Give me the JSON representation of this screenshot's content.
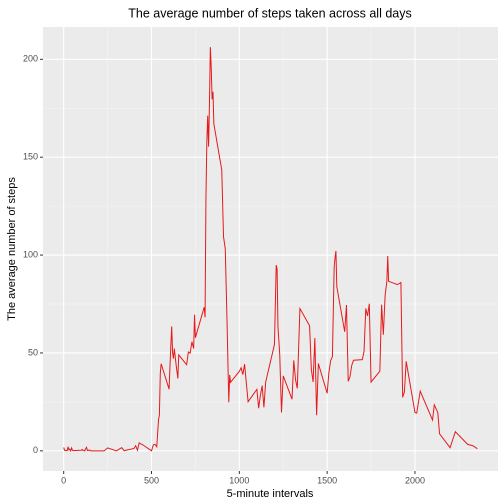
{
  "chart_data": {
    "type": "line",
    "title": "The average number of steps taken across all days",
    "x_label": "5-minute intervals",
    "y_label": "The average number of steps",
    "x": [
      0,
      5,
      10,
      15,
      20,
      25,
      30,
      35,
      40,
      45,
      50,
      55,
      100,
      105,
      110,
      115,
      120,
      125,
      130,
      135,
      140,
      145,
      150,
      155,
      200,
      230,
      250,
      300,
      330,
      345,
      400,
      410,
      420,
      430,
      440,
      450,
      500,
      510,
      520,
      530,
      540,
      545,
      550,
      555,
      600,
      610,
      615,
      620,
      625,
      630,
      640,
      650,
      655,
      700,
      710,
      720,
      730,
      740,
      745,
      750,
      800,
      805,
      810,
      815,
      820,
      825,
      830,
      835,
      840,
      845,
      850,
      855,
      900,
      910,
      920,
      930,
      940,
      945,
      950,
      1000,
      1010,
      1020,
      1030,
      1040,
      1050,
      1100,
      1110,
      1120,
      1130,
      1140,
      1150,
      1200,
      1210,
      1215,
      1220,
      1230,
      1240,
      1250,
      1300,
      1310,
      1320,
      1330,
      1345,
      1400,
      1410,
      1420,
      1430,
      1440,
      1450,
      1500,
      1510,
      1520,
      1530,
      1540,
      1545,
      1550,
      1555,
      1600,
      1610,
      1620,
      1630,
      1640,
      1650,
      1700,
      1710,
      1720,
      1730,
      1740,
      1750,
      1800,
      1810,
      1820,
      1830,
      1840,
      1845,
      1850,
      1900,
      1920,
      1930,
      1940,
      1950,
      2000,
      2010,
      2030,
      2100,
      2110,
      2130,
      2140,
      2200,
      2230,
      2300,
      2330,
      2355
    ],
    "series": [
      {
        "name": "steps",
        "color": "#e41a1c",
        "values": [
          1.7,
          0.3,
          0.1,
          0.2,
          0.1,
          2.1,
          0.5,
          0.9,
          0,
          1.5,
          0.3,
          0.1,
          0.3,
          0.7,
          0.2,
          0.3,
          0,
          1.1,
          1.8,
          0.2,
          0.2,
          0.4,
          0.3,
          0,
          0,
          0,
          1.5,
          0,
          1.6,
          0.1,
          1.2,
          2.6,
          0.3,
          4.1,
          3.5,
          3.1,
          0,
          3,
          3.3,
          2.1,
          16,
          18.3,
          39.5,
          44.5,
          31.5,
          53.8,
          63.5,
          50,
          47.1,
          52.2,
          44,
          37,
          49,
          44,
          50.5,
          49.9,
          55.7,
          52.3,
          69.5,
          57.8,
          73.4,
          68.2,
          129.4,
          157.5,
          171.2,
          155.4,
          177.3,
          206.2,
          195.9,
          179.6,
          183.4,
          167,
          143.5,
          109.4,
          103.2,
          66.2,
          24.8,
          38.8,
          35,
          40.6,
          42.4,
          38.9,
          44.3,
          34.5,
          25.1,
          31.4,
          21.8,
          28.4,
          33.3,
          22.2,
          35.1,
          54.3,
          94.9,
          92.8,
          63.4,
          49.4,
          19.6,
          38.3,
          26.4,
          46.2,
          36.3,
          31.9,
          72.7,
          63.9,
          41.6,
          35.2,
          57.6,
          18.2,
          44.6,
          29.4,
          40,
          46.1,
          48.1,
          93.8,
          98.7,
          102.1,
          83.9,
          60.8,
          74.5,
          35.5,
          37.9,
          43.6,
          46.3,
          46.6,
          50.7,
          72.7,
          68.9,
          75.1,
          35.1,
          40.7,
          74.7,
          59.3,
          79.3,
          86.6,
          99.5,
          86.6,
          84.9,
          86,
          27.3,
          30.2,
          45.7,
          19.6,
          19.3,
          30.5,
          15.7,
          23.5,
          19.5,
          8.7,
          1.6,
          9.8,
          3.3,
          2.6,
          1.1
        ]
      }
    ],
    "xlim": [
      -117.75,
      2472.75
    ],
    "xticks": [
      0,
      500,
      1000,
      1500,
      2000
    ],
    "ylim": [
      -10.3,
      216.5
    ],
    "yticks": [
      0,
      50,
      100,
      150,
      200
    ],
    "grid": true
  }
}
